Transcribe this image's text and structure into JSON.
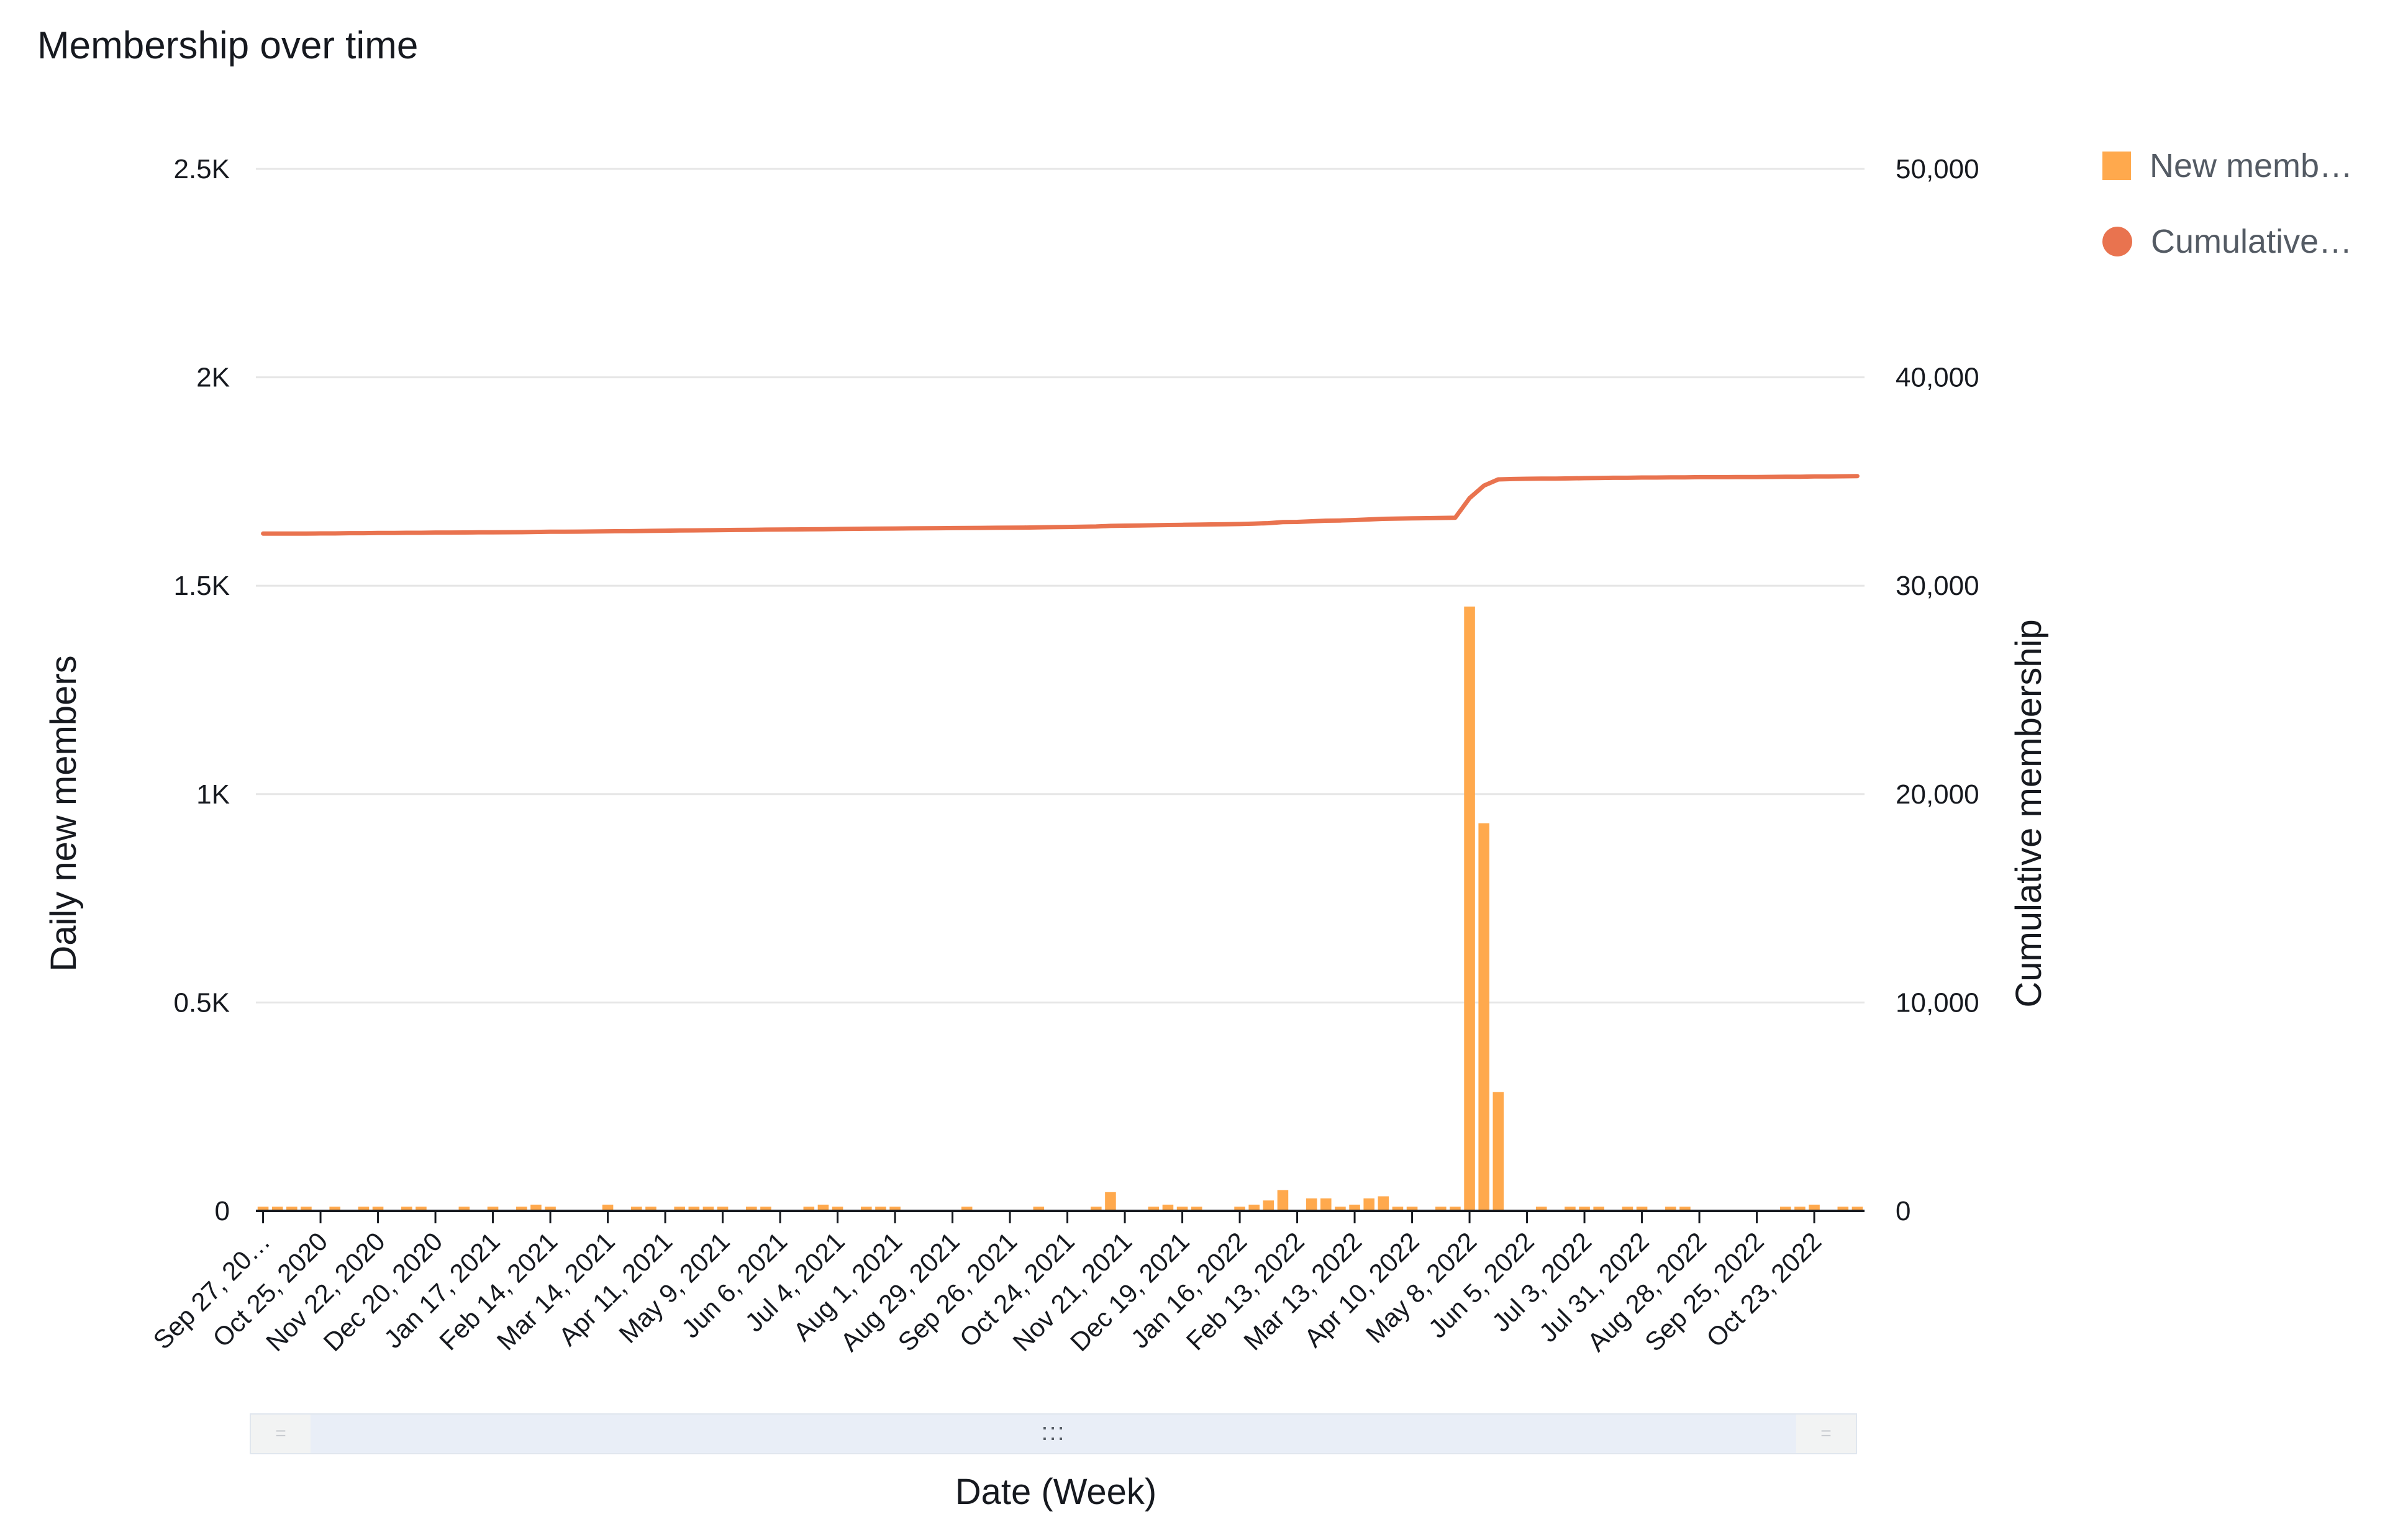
{
  "title": "Membership over time",
  "legend": [
    {
      "label": "New memb…",
      "shape": "square",
      "color": "#ffa94d"
    },
    {
      "label": "Cumulative…",
      "shape": "circle",
      "color": "#e9734f"
    }
  ],
  "colors": {
    "bar": "#ffa94d",
    "line": "#e9734f",
    "grid": "#e6e6e6",
    "axis": "#16191f"
  },
  "chart_data": {
    "type": "bar+line",
    "xlabel": "Date (Week)",
    "ylabel_left": "Daily new members",
    "ylabel_right": "Cumulative membership",
    "ylim_left": [
      0,
      2500
    ],
    "ylim_right": [
      0,
      50000
    ],
    "left_ticks": [
      "0",
      "0.5K",
      "1K",
      "1.5K",
      "2K",
      "2.5K"
    ],
    "left_tick_values": [
      0,
      500,
      1000,
      1500,
      2000,
      2500
    ],
    "right_ticks": [
      "0",
      "10,000",
      "20,000",
      "30,000",
      "40,000",
      "50,000"
    ],
    "right_tick_values": [
      0,
      10000,
      20000,
      30000,
      40000,
      50000
    ],
    "x_tick_labels": [
      "Sep 27, 20…",
      "Oct 25, 2020",
      "Nov 22, 2020",
      "Dec 20, 2020",
      "Jan 17, 2021",
      "Feb 14, 2021",
      "Mar 14, 2021",
      "Apr 11, 2021",
      "May 9, 2021",
      "Jun 6, 2021",
      "Jul 4, 2021",
      "Aug 1, 2021",
      "Aug 29, 2021",
      "Sep 26, 2021",
      "Oct 24, 2021",
      "Nov 21, 2021",
      "Dec 19, 2021",
      "Jan 16, 2022",
      "Feb 13, 2022",
      "Mar 13, 2022",
      "Apr 10, 2022",
      "May 8, 2022",
      "Jun 5, 2022",
      "Jul 3, 2022",
      "Jul 31, 2022",
      "Aug 28, 2022",
      "Sep 25, 2022",
      "Oct 23, 2022"
    ],
    "daily_new_members": [
      10,
      10,
      10,
      10,
      0,
      10,
      0,
      10,
      10,
      0,
      10,
      10,
      0,
      0,
      10,
      0,
      10,
      0,
      10,
      15,
      10,
      0,
      0,
      0,
      15,
      0,
      10,
      10,
      0,
      10,
      10,
      10,
      10,
      0,
      10,
      10,
      0,
      0,
      10,
      15,
      10,
      0,
      10,
      10,
      10,
      0,
      0,
      0,
      0,
      10,
      0,
      0,
      0,
      0,
      10,
      0,
      0,
      0,
      10,
      45,
      0,
      0,
      10,
      15,
      10,
      10,
      0,
      0,
      10,
      15,
      25,
      50,
      0,
      30,
      30,
      10,
      15,
      30,
      35,
      10,
      10,
      0,
      10,
      10,
      1450,
      930,
      285,
      0,
      0,
      10,
      0,
      10,
      10,
      10,
      0,
      10,
      10,
      0,
      10,
      10,
      0,
      0,
      0,
      0,
      0,
      0,
      10,
      10,
      15,
      0,
      10,
      10
    ],
    "cumulative_membership": [
      32500,
      32500,
      32500,
      32500,
      32510,
      32510,
      32520,
      32520,
      32530,
      32530,
      32540,
      32540,
      32550,
      32550,
      32555,
      32560,
      32560,
      32565,
      32570,
      32580,
      32590,
      32590,
      32595,
      32600,
      32610,
      32615,
      32620,
      32630,
      32640,
      32650,
      32655,
      32660,
      32670,
      32675,
      32680,
      32690,
      32695,
      32700,
      32705,
      32710,
      32720,
      32730,
      32735,
      32740,
      32745,
      32750,
      32755,
      32760,
      32765,
      32770,
      32775,
      32780,
      32785,
      32790,
      32800,
      32810,
      32820,
      32830,
      32840,
      32870,
      32880,
      32890,
      32900,
      32910,
      32920,
      32930,
      32940,
      32950,
      32960,
      32980,
      33000,
      33050,
      33060,
      33090,
      33120,
      33130,
      33150,
      33180,
      33210,
      33220,
      33230,
      33240,
      33250,
      33260,
      34200,
      34800,
      35100,
      35120,
      35130,
      35140,
      35140,
      35150,
      35160,
      35170,
      35180,
      35180,
      35190,
      35190,
      35200,
      35200,
      35210,
      35210,
      35210,
      35215,
      35215,
      35220,
      35225,
      35230,
      35240,
      35240,
      35250,
      35260
    ]
  },
  "scrollbar": {
    "grip": ":::",
    "handle_left": "=",
    "handle_right": "="
  }
}
